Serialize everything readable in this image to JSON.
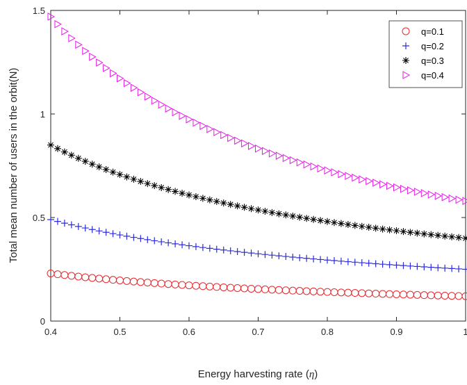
{
  "chart_data": {
    "type": "scatter",
    "title": "",
    "xlabel": "Energy harvesting rate (η)",
    "xlabel_main": "Energy harvesting rate (",
    "xlabel_symbol": "η",
    "xlabel_close": ")",
    "ylabel": "Total mean number of users in the orbit(N)",
    "xlim": [
      0.4,
      1.0
    ],
    "ylim": [
      0,
      1.5
    ],
    "xticks": [
      0.4,
      0.5,
      0.6,
      0.7,
      0.8,
      0.9,
      1.0
    ],
    "xtick_labels": [
      "0.4",
      "0.5",
      "0.6",
      "0.7",
      "0.8",
      "0.9",
      "1"
    ],
    "yticks": [
      0,
      0.5,
      1.0,
      1.5
    ],
    "ytick_labels": [
      "0",
      "0.5",
      "1",
      "1.5"
    ],
    "grid": false,
    "legend_position": "top-right",
    "x_start": 0.4,
    "x_end": 1.0,
    "x_step": 0.01,
    "series": [
      {
        "name": "q=0.1",
        "marker": "circle",
        "color": "#e8262b",
        "y_at_x_start": 0.23,
        "y_at_x_end": 0.12
      },
      {
        "name": "q=0.2",
        "marker": "plus",
        "color": "#2b2bd9",
        "y_at_x_start": 0.49,
        "y_at_x_end": 0.25
      },
      {
        "name": "q=0.3",
        "marker": "asterisk",
        "color": "#000000",
        "y_at_x_start": 0.85,
        "y_at_x_end": 0.4
      },
      {
        "name": "q=0.4",
        "marker": "triangle-right",
        "color": "#e619e6",
        "y_at_x_start": 1.47,
        "y_at_x_end": 0.58
      }
    ]
  }
}
